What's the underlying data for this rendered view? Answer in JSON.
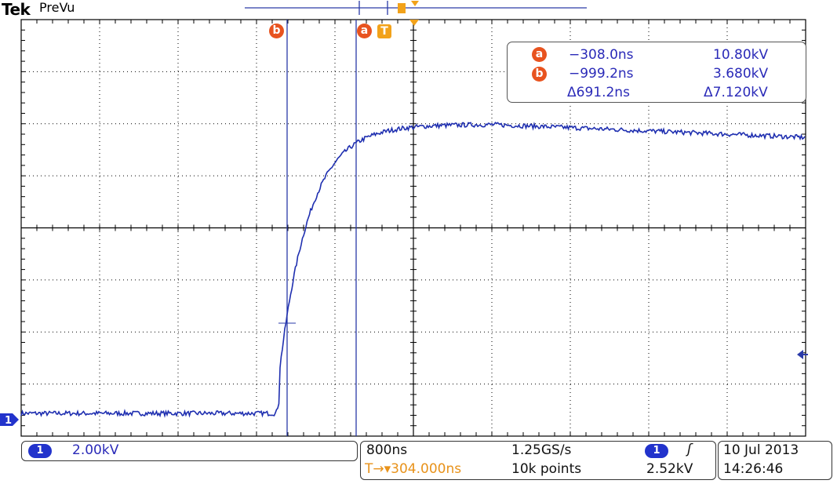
{
  "header": {
    "brand": "Tek",
    "mode": "PreVu"
  },
  "colors": {
    "trace": "#1f2fb0",
    "cursor": "#2a3aa8",
    "grid": "#000000",
    "cursor_badge": "#e8531f",
    "trigger_badge": "#f2a21a"
  },
  "cursor_markers": {
    "a": "a",
    "b": "b",
    "trigger": "T"
  },
  "readout": {
    "a_time": "−308.0ns",
    "a_value": "10.80kV",
    "b_time": "−999.2ns",
    "b_value": "3.680kV",
    "delta_time": "Δ691.2ns",
    "delta_value": "Δ7.120kV"
  },
  "channel": {
    "number": "1",
    "scale": "2.00kV"
  },
  "horizontal": {
    "timebase": "800ns",
    "sample_rate": "1.25GS/s",
    "trigger_position": "T→▾304.000ns",
    "record_length": "10k points"
  },
  "trigger": {
    "channel": "1",
    "slope_icon": "rising-edge-icon",
    "slope_glyph": "ʃ",
    "level": "2.52kV"
  },
  "datetime": {
    "date": "10 Jul  2013",
    "time": "14:26:46"
  },
  "waveform": {
    "x_units": "divisions",
    "y_units": "kV",
    "volts_per_div": 2.0,
    "baseline_kV": 0.0,
    "edge_start_div": 3.25,
    "edge_foot_kV": 0.5,
    "plateau_kV": 11.1,
    "time_constant_div": 0.38,
    "peak_div": 6.0,
    "droop_end_kV": 10.6,
    "noise_kV": 0.09
  }
}
